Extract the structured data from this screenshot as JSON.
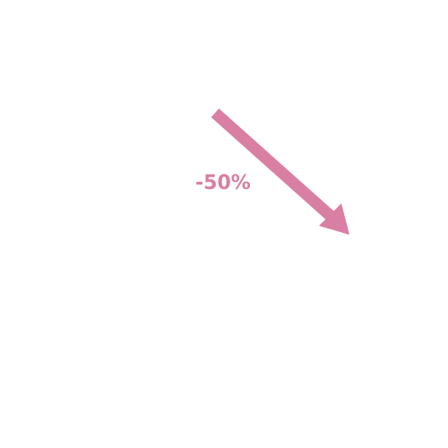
{
  "indicator": {
    "label": "-50%",
    "direction": "down",
    "color": "#d97fa3",
    "icon": "arrow-down-right-icon"
  }
}
